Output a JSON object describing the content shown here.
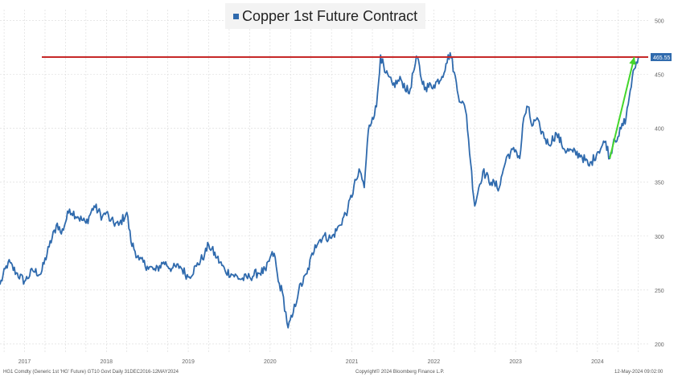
{
  "chart_data": {
    "type": "line",
    "title": "Copper 1st Future Contract",
    "series": [
      {
        "name": "Copper 1st Future Contract",
        "color": "#2f6aad",
        "points": [
          [
            2016.7,
            255
          ],
          [
            2016.8,
            276
          ],
          [
            2016.9,
            266
          ],
          [
            2017.0,
            258
          ],
          [
            2017.1,
            268
          ],
          [
            2017.2,
            265
          ],
          [
            2017.3,
            290
          ],
          [
            2017.4,
            312
          ],
          [
            2017.45,
            302
          ],
          [
            2017.55,
            325
          ],
          [
            2017.65,
            318
          ],
          [
            2017.75,
            312
          ],
          [
            2017.85,
            328
          ],
          [
            2017.95,
            318
          ],
          [
            2018.0,
            322
          ],
          [
            2018.05,
            314
          ],
          [
            2018.15,
            310
          ],
          [
            2018.25,
            322
          ],
          [
            2018.3,
            295
          ],
          [
            2018.4,
            278
          ],
          [
            2018.5,
            272
          ],
          [
            2018.6,
            268
          ],
          [
            2018.7,
            276
          ],
          [
            2018.8,
            270
          ],
          [
            2018.9,
            272
          ],
          [
            2019.0,
            262
          ],
          [
            2019.1,
            272
          ],
          [
            2019.2,
            283
          ],
          [
            2019.25,
            292
          ],
          [
            2019.35,
            280
          ],
          [
            2019.45,
            268
          ],
          [
            2019.55,
            264
          ],
          [
            2019.65,
            260
          ],
          [
            2019.75,
            262
          ],
          [
            2019.85,
            266
          ],
          [
            2019.95,
            268
          ],
          [
            2020.0,
            280
          ],
          [
            2020.05,
            284
          ],
          [
            2020.1,
            258
          ],
          [
            2020.15,
            248
          ],
          [
            2020.22,
            215
          ],
          [
            2020.27,
            225
          ],
          [
            2020.35,
            250
          ],
          [
            2020.45,
            265
          ],
          [
            2020.55,
            292
          ],
          [
            2020.65,
            300
          ],
          [
            2020.75,
            298
          ],
          [
            2020.85,
            310
          ],
          [
            2020.95,
            325
          ],
          [
            2021.05,
            352
          ],
          [
            2021.1,
            360
          ],
          [
            2021.15,
            345
          ],
          [
            2021.2,
            398
          ],
          [
            2021.25,
            410
          ],
          [
            2021.3,
            420
          ],
          [
            2021.35,
            468
          ],
          [
            2021.4,
            452
          ],
          [
            2021.5,
            440
          ],
          [
            2021.6,
            445
          ],
          [
            2021.7,
            432
          ],
          [
            2021.75,
            452
          ],
          [
            2021.8,
            466
          ],
          [
            2021.85,
            445
          ],
          [
            2021.9,
            438
          ],
          [
            2022.0,
            440
          ],
          [
            2022.1,
            448
          ],
          [
            2022.15,
            460
          ],
          [
            2022.2,
            470
          ],
          [
            2022.25,
            452
          ],
          [
            2022.3,
            430
          ],
          [
            2022.35,
            425
          ],
          [
            2022.4,
            412
          ],
          [
            2022.45,
            368
          ],
          [
            2022.5,
            328
          ],
          [
            2022.55,
            345
          ],
          [
            2022.6,
            360
          ],
          [
            2022.7,
            350
          ],
          [
            2022.8,
            345
          ],
          [
            2022.85,
            362
          ],
          [
            2022.9,
            375
          ],
          [
            2023.0,
            380
          ],
          [
            2023.05,
            372
          ],
          [
            2023.1,
            410
          ],
          [
            2023.15,
            420
          ],
          [
            2023.2,
            402
          ],
          [
            2023.25,
            408
          ],
          [
            2023.3,
            400
          ],
          [
            2023.4,
            385
          ],
          [
            2023.5,
            395
          ],
          [
            2023.6,
            380
          ],
          [
            2023.7,
            378
          ],
          [
            2023.8,
            375
          ],
          [
            2023.9,
            365
          ],
          [
            2024.0,
            378
          ],
          [
            2024.1,
            388
          ],
          [
            2024.15,
            372
          ],
          [
            2024.2,
            390
          ],
          [
            2024.25,
            392
          ],
          [
            2024.35,
            410
          ],
          [
            2024.4,
            435
          ],
          [
            2024.45,
            455
          ],
          [
            2024.5,
            466
          ]
        ]
      }
    ],
    "resistance_line": {
      "value": 466,
      "color": "#c62828"
    },
    "arrow": {
      "from": [
        2024.15,
        372
      ],
      "to": [
        2024.45,
        466
      ],
      "color": "#44d62c"
    },
    "current_value_label": "465.55",
    "x_ticks": [
      {
        "value": 2017.0,
        "label": "2017"
      },
      {
        "value": 2018.0,
        "label": "2018"
      },
      {
        "value": 2019.0,
        "label": "2019"
      },
      {
        "value": 2020.0,
        "label": "2020"
      },
      {
        "value": 2021.0,
        "label": "2021"
      },
      {
        "value": 2022.0,
        "label": "2022"
      },
      {
        "value": 2023.0,
        "label": "2023"
      },
      {
        "value": 2024.0,
        "label": "2024"
      }
    ],
    "y_ticks": [
      {
        "value": 200,
        "label": "200"
      },
      {
        "value": 250,
        "label": "250"
      },
      {
        "value": 300,
        "label": "300"
      },
      {
        "value": 350,
        "label": "350"
      },
      {
        "value": 400,
        "label": "400"
      },
      {
        "value": 450,
        "label": "450"
      },
      {
        "value": 500,
        "label": "500"
      }
    ],
    "xlim": [
      2016.7,
      2024.62
    ],
    "ylim": [
      191,
      510
    ],
    "grid": true,
    "legend": "top-center"
  },
  "footer": {
    "left": "HG1 Comdty (Generic 1st 'HG' Future) GT10 Govt Daily 31DEC2016-12MAY2024",
    "center": "Copyright© 2024 Bloomberg Finance L.P.",
    "right": "12-May-2024 09:02:00"
  }
}
